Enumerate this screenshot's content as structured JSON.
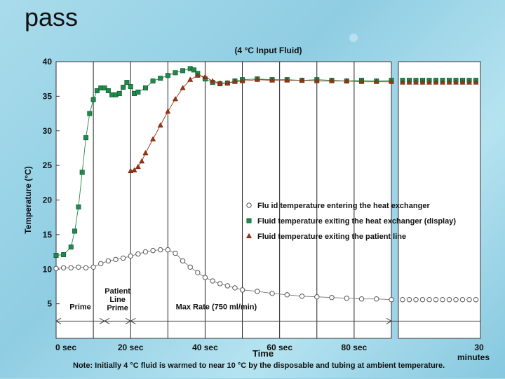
{
  "page": {
    "title": "pass"
  },
  "chart_data": {
    "type": "scatter",
    "title": "(4 °C Input Fluid)",
    "xlabel": "Time",
    "ylabel": "Temperature (°C)",
    "ylim": [
      0,
      40
    ],
    "xlim": [
      0,
      90
    ],
    "x_units": "sec",
    "y_ticks": [
      5,
      10,
      15,
      20,
      25,
      30,
      35,
      40
    ],
    "x_tick_labels": [
      "0  sec",
      "20  sec",
      "40  sec",
      "60  sec",
      "80  sec",
      "30 minutes"
    ],
    "axis_break_after": 90,
    "grid": false,
    "legend_position": "center-right",
    "series": [
      {
        "name": "Flu id temperature entering the heat exchanger",
        "marker": "circle-open",
        "color": "#555555",
        "x": [
          0,
          2,
          4,
          6,
          8,
          10,
          12,
          14,
          16,
          18,
          20,
          22,
          24,
          26,
          28,
          30,
          32,
          34,
          36,
          38,
          40,
          42,
          44,
          46,
          48,
          50,
          54,
          58,
          62,
          66,
          70,
          74,
          78,
          82,
          86,
          90
        ],
        "y": [
          10.1,
          10.2,
          10.2,
          10.3,
          10.2,
          10.3,
          10.8,
          11.2,
          11.4,
          11.6,
          11.9,
          12.2,
          12.5,
          12.7,
          12.8,
          12.8,
          12.3,
          11.2,
          10.3,
          9.5,
          8.8,
          8.3,
          7.9,
          7.6,
          7.3,
          7.0,
          6.8,
          6.5,
          6.3,
          6.1,
          6.0,
          5.9,
          5.8,
          5.7,
          5.7,
          5.6
        ]
      },
      {
        "name": "Fluid temperature exiting the heat exchanger (display)",
        "marker": "square-filled",
        "color": "#1f8a4c",
        "x": [
          0,
          2,
          4,
          5,
          6,
          7,
          8,
          9,
          10,
          11,
          12,
          13,
          14,
          15,
          16,
          17,
          18,
          19,
          20,
          21,
          22,
          24,
          26,
          28,
          30,
          32,
          34,
          36,
          37,
          38,
          40,
          42,
          44,
          46,
          48,
          50,
          54,
          58,
          62,
          66,
          70,
          74,
          78,
          82,
          86,
          90
        ],
        "y": [
          12,
          12.1,
          13.2,
          15.5,
          19,
          24,
          29,
          32.5,
          34.5,
          35.8,
          36.2,
          36.2,
          35.8,
          35.2,
          35.2,
          35.4,
          36.3,
          37.0,
          36.4,
          35.4,
          35.6,
          36.2,
          37.2,
          37.6,
          38.0,
          38.4,
          38.7,
          39.0,
          38.8,
          38.3,
          37.5,
          37.0,
          36.8,
          36.9,
          37.2,
          37.4,
          37.5,
          37.4,
          37.4,
          37.3,
          37.4,
          37.3,
          37.2,
          37.3,
          37.2,
          37.3
        ]
      },
      {
        "name": "Fluid temperature exiting the patient line",
        "marker": "triangle-filled",
        "color": "#9c3412",
        "x": [
          20,
          21,
          22,
          23,
          24,
          26,
          28,
          30,
          32,
          34,
          36,
          38,
          40,
          42,
          44,
          46,
          48,
          50,
          54,
          58,
          62,
          66,
          70,
          74,
          78,
          82,
          86,
          90
        ],
        "y": [
          24.2,
          24.3,
          24.8,
          25.6,
          26.8,
          28.8,
          30.8,
          32.8,
          34.6,
          36.2,
          37.4,
          38.0,
          37.8,
          37.2,
          36.9,
          36.9,
          37.1,
          37.2,
          37.4,
          37.3,
          37.3,
          37.3,
          37.2,
          37.2,
          37.2,
          37.1,
          37.1,
          37.1
        ]
      }
    ],
    "post_break_series": [
      {
        "name": "Flu id temperature entering the heat exchanger",
        "y": 5.6
      },
      {
        "name": "Fluid temperature exiting the heat exchanger (display)",
        "y": 37.3
      },
      {
        "name": "Fluid temperature exiting the patient line",
        "y": 37.0
      }
    ],
    "phase_annotations": [
      {
        "label": "Prime",
        "from": 0,
        "to": 13
      },
      {
        "label": "Patient Line Prime",
        "from": 13,
        "to": 20
      },
      {
        "label": "Max Rate (750 ml/min)",
        "from": 20,
        "to": 90
      }
    ]
  },
  "note": "Note: Initially 4 °C fluid is warmed to near 10 °C by the disposable and tubing at ambient temperature."
}
